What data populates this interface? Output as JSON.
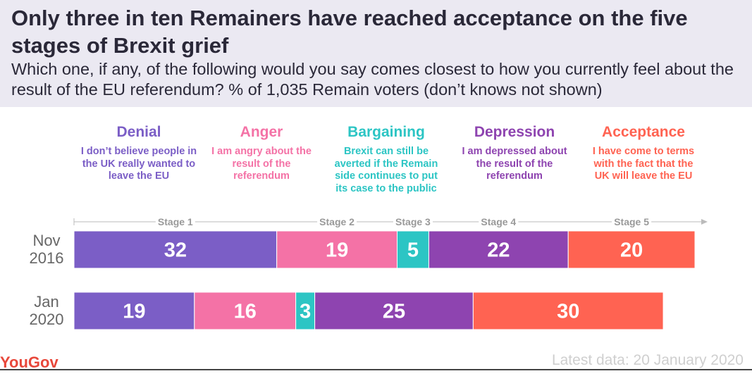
{
  "title": "Only three in ten Remainers have reached acceptance on the five stages of Brexit grief",
  "subtitle": "Which one, if any, of the following would you say comes closest to how you currently feel about the result of the EU referendum? % of 1,035 Remain voters (don’t knows not shown)",
  "stages": [
    {
      "name": "Denial",
      "desc": "I don’t believe people in the UK really wanted to leave the EU",
      "color": "#7b5ec6"
    },
    {
      "name": "Anger",
      "desc": "I am angry about the result of the referendum",
      "color": "#f472a6"
    },
    {
      "name": "Bargaining",
      "desc": "Brexit can still be averted if the Remain side continues to put its case to the public",
      "color": "#2cc5c4"
    },
    {
      "name": "Depression",
      "desc": "I am depressed about the result of the referendum",
      "color": "#8e44b0"
    },
    {
      "name": "Acceptance",
      "desc": "I have come to terms with the fact that the UK will leave the EU",
      "color": "#ff6352"
    }
  ],
  "footer": {
    "brand": "YouGov",
    "latest": "Latest data: 20 January 2020"
  },
  "chart_data": {
    "type": "bar",
    "orientation": "horizontal-stacked",
    "categories": [
      "Nov 2016",
      "Jan 2020"
    ],
    "axis_labels": [
      "Stage 1",
      "Stage 2",
      "Stage 3",
      "Stage 4",
      "Stage 5"
    ],
    "series": [
      {
        "name": "Denial",
        "values": [
          32,
          19
        ]
      },
      {
        "name": "Anger",
        "values": [
          19,
          16
        ]
      },
      {
        "name": "Bargaining",
        "values": [
          5,
          3
        ]
      },
      {
        "name": "Depression",
        "values": [
          22,
          25
        ]
      },
      {
        "name": "Acceptance",
        "values": [
          20,
          30
        ]
      }
    ],
    "xlim": [
      0,
      100
    ]
  }
}
